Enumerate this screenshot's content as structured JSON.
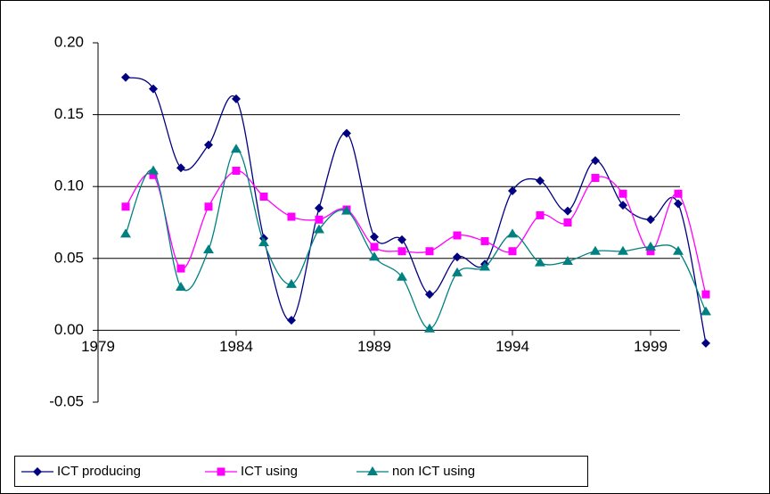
{
  "chart_data": {
    "type": "line",
    "x": [
      1980,
      1981,
      1982,
      1983,
      1984,
      1985,
      1986,
      1987,
      1988,
      1989,
      1990,
      1991,
      1992,
      1993,
      1994,
      1995,
      1996,
      1997,
      1998,
      1999,
      2000,
      2001
    ],
    "series": [
      {
        "name": "ICT producing",
        "color": "#000080",
        "marker": "diamond",
        "values": [
          0.176,
          0.168,
          0.113,
          0.129,
          0.161,
          0.064,
          0.007,
          0.085,
          0.137,
          0.065,
          0.063,
          0.025,
          0.051,
          0.046,
          0.097,
          0.104,
          0.083,
          0.118,
          0.087,
          0.077,
          0.088,
          -0.009
        ]
      },
      {
        "name": "ICT using",
        "color": "#ff00ff",
        "marker": "square",
        "values": [
          0.086,
          0.108,
          0.043,
          0.086,
          0.111,
          0.093,
          0.079,
          0.077,
          0.084,
          0.058,
          0.055,
          0.055,
          0.066,
          0.062,
          0.055,
          0.08,
          0.075,
          0.106,
          0.095,
          0.055,
          0.095,
          0.025
        ]
      },
      {
        "name": "non ICT using",
        "color": "#008080",
        "marker": "triangle",
        "values": [
          0.067,
          0.111,
          0.03,
          0.056,
          0.126,
          0.061,
          0.032,
          0.07,
          0.083,
          0.051,
          0.037,
          0.001,
          0.04,
          0.044,
          0.067,
          0.047,
          0.048,
          0.055,
          0.055,
          0.058,
          0.055,
          0.013
        ]
      }
    ],
    "xlim": [
      1979,
      2001
    ],
    "xticks": [
      1979,
      1984,
      1989,
      1994,
      1999
    ],
    "ylim": [
      -0.05,
      0.2
    ],
    "yticks": [
      {
        "value": -0.05,
        "label": "-0.05"
      },
      {
        "value": 0,
        "label": "0.00"
      },
      {
        "value": 0.05,
        "label": "0.05"
      },
      {
        "value": 0.1,
        "label": "0.10"
      },
      {
        "value": 0.15,
        "label": "0.15"
      },
      {
        "value": 0.2,
        "label": "0.20"
      }
    ],
    "grid": true,
    "legend": "bottom"
  }
}
